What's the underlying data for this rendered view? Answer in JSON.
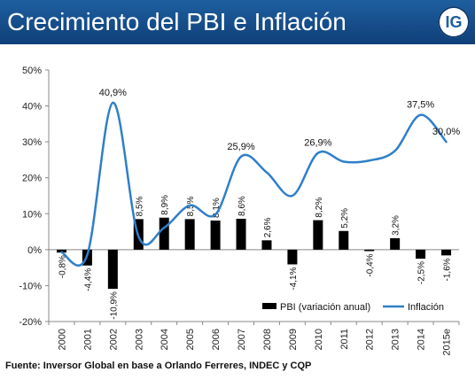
{
  "header": {
    "title": "Crecimiento del PBI e Inflación",
    "logo_text": "IG"
  },
  "source": "Fuente: Inversor Global en base a Orlando Ferreres, INDEC y CQP",
  "colors": {
    "header": "#1e5fa0",
    "bars": "#000000",
    "line": "#2f7fc9"
  },
  "chart_data": {
    "type": "bar",
    "categories": [
      "2000",
      "2001",
      "2002",
      "2003",
      "2004",
      "2005",
      "2006",
      "2007",
      "2008",
      "2009",
      "2010",
      "2011",
      "2012",
      "2013",
      "2014",
      "2015e"
    ],
    "ylim": [
      -20,
      50
    ],
    "yticks": [
      -20,
      -10,
      0,
      10,
      20,
      30,
      40,
      50
    ],
    "ytick_labels": [
      "-20%",
      "-10%",
      "0%",
      "10%",
      "20%",
      "30%",
      "40%",
      "50%"
    ],
    "grid": false,
    "legend_position": "bottom-right",
    "series": [
      {
        "name": "PBI (variación anual)",
        "type": "bar",
        "values": [
          -0.8,
          -4.4,
          -10.9,
          8.5,
          8.9,
          8.5,
          8.1,
          8.6,
          2.6,
          -4.1,
          8.2,
          5.2,
          -0.4,
          3.2,
          -2.5,
          -1.6
        ],
        "labels": [
          "-0,8%",
          "-4,4%",
          "-10,9%",
          "8,5%",
          "8,9%",
          "8,5%",
          "8,1%",
          "8,6%",
          "2,6%",
          "-4,1%",
          "8,2%",
          "5,2%",
          "-0,4%",
          "3,2%",
          "-2,5%",
          "-1,6%"
        ]
      },
      {
        "name": "Inflación",
        "type": "line",
        "values": [
          -0.7,
          -1.5,
          40.9,
          3.7,
          6.1,
          12.3,
          9.8,
          25.9,
          21.5,
          15.0,
          26.9,
          24.5,
          24.8,
          27.5,
          37.5,
          30.0
        ],
        "labels": [
          "",
          "",
          "40,9%",
          "",
          "",
          "",
          "",
          "25,9%",
          "",
          "",
          "26,9%",
          "",
          "",
          "",
          "37,5%",
          "30,0%"
        ]
      }
    ]
  }
}
